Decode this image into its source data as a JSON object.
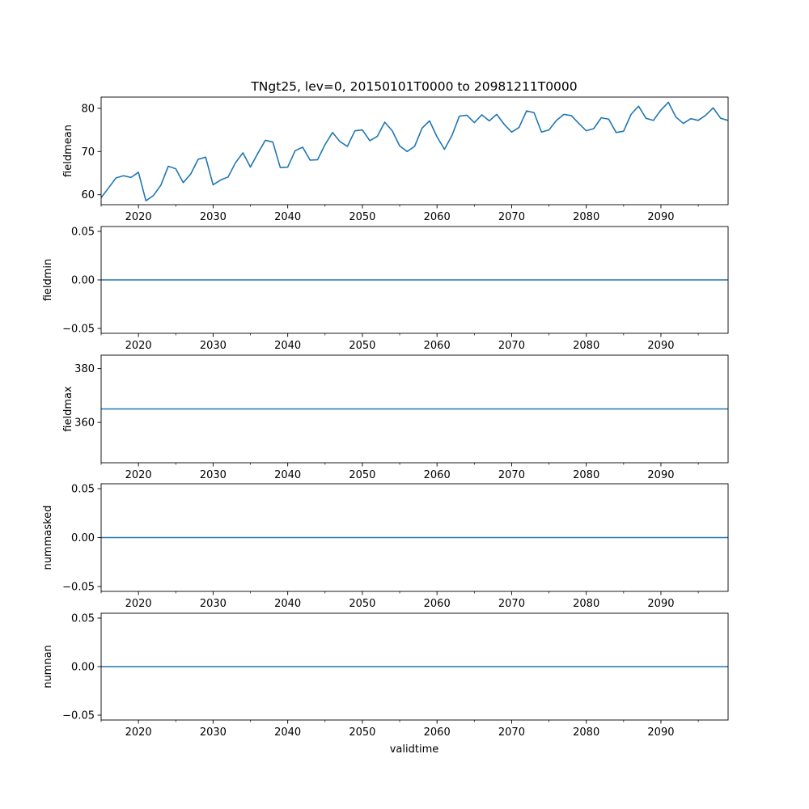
{
  "title": "TNgt25, lev=0, 20150101T0000 to 20981211T0000",
  "xlabel": "validtime",
  "chart_data": [
    {
      "type": "line",
      "ylabel": "fieldmean",
      "xlim": [
        2015,
        2099
      ],
      "ylim": [
        57.7,
        82.6
      ],
      "x_ticks": [
        2020,
        2030,
        2040,
        2050,
        2060,
        2070,
        2080,
        2090
      ],
      "x_tick_labels": [
        "2020",
        "2030",
        "2040",
        "2050",
        "2060",
        "2070",
        "2080",
        "2090"
      ],
      "y_ticks": [
        60,
        70,
        80
      ],
      "y_tick_labels": [
        "60",
        "70",
        "80"
      ],
      "line_color": "#1f77b4",
      "x": [
        2015,
        2016,
        2017,
        2018,
        2019,
        2020,
        2021,
        2022,
        2023,
        2024,
        2025,
        2026,
        2027,
        2028,
        2029,
        2030,
        2031,
        2032,
        2033,
        2034,
        2035,
        2036,
        2037,
        2038,
        2039,
        2040,
        2041,
        2042,
        2043,
        2044,
        2045,
        2046,
        2047,
        2048,
        2049,
        2050,
        2051,
        2052,
        2053,
        2054,
        2055,
        2056,
        2057,
        2058,
        2059,
        2060,
        2061,
        2062,
        2063,
        2064,
        2065,
        2066,
        2067,
        2068,
        2069,
        2070,
        2071,
        2072,
        2073,
        2074,
        2075,
        2076,
        2077,
        2078,
        2079,
        2080,
        2081,
        2082,
        2083,
        2084,
        2085,
        2086,
        2087,
        2088,
        2089,
        2090,
        2091,
        2092,
        2093,
        2094,
        2095,
        2096,
        2097,
        2098,
        2099
      ],
      "values": [
        59.3,
        61.6,
        63.9,
        64.4,
        64.0,
        65.2,
        58.6,
        59.8,
        62.2,
        66.6,
        66.0,
        62.8,
        64.8,
        68.2,
        68.7,
        62.3,
        63.4,
        64.1,
        67.4,
        69.7,
        66.4,
        69.6,
        72.6,
        72.2,
        66.3,
        66.4,
        70.2,
        71.0,
        68.0,
        68.1,
        71.6,
        74.4,
        72.3,
        71.2,
        74.8,
        75.0,
        72.5,
        73.5,
        76.8,
        74.8,
        71.3,
        70.0,
        71.2,
        75.4,
        77.1,
        73.4,
        70.5,
        73.7,
        78.2,
        78.4,
        76.7,
        78.5,
        77.1,
        78.6,
        76.3,
        74.5,
        75.6,
        79.4,
        79.0,
        74.5,
        75.0,
        77.2,
        78.6,
        78.3,
        76.5,
        74.8,
        75.3,
        77.8,
        77.5,
        74.4,
        74.7,
        78.6,
        80.5,
        77.7,
        77.2,
        79.6,
        81.4,
        78.0,
        76.5,
        77.6,
        77.2,
        78.4,
        80.1,
        77.7,
        77.2
      ]
    },
    {
      "type": "line",
      "ylabel": "fieldmin",
      "xlim": [
        2015,
        2099
      ],
      "ylim": [
        -0.055,
        0.055
      ],
      "x_ticks": [
        2020,
        2030,
        2040,
        2050,
        2060,
        2070,
        2080,
        2090
      ],
      "x_tick_labels": [
        "2020",
        "2030",
        "2040",
        "2050",
        "2060",
        "2070",
        "2080",
        "2090"
      ],
      "y_ticks": [
        -0.05,
        0.0,
        0.05
      ],
      "y_tick_labels": [
        "−0.05",
        "0.00",
        "0.05"
      ],
      "line_color": "#1f77b4",
      "x": [
        2015,
        2099
      ],
      "values": [
        0,
        0
      ]
    },
    {
      "type": "line",
      "ylabel": "fieldmax",
      "xlim": [
        2015,
        2099
      ],
      "ylim": [
        345,
        385
      ],
      "x_ticks": [
        2020,
        2030,
        2040,
        2050,
        2060,
        2070,
        2080,
        2090
      ],
      "x_tick_labels": [
        "2020",
        "2030",
        "2040",
        "2050",
        "2060",
        "2070",
        "2080",
        "2090"
      ],
      "y_ticks": [
        360,
        380
      ],
      "y_tick_labels": [
        "360",
        "380"
      ],
      "line_color": "#1f77b4",
      "x": [
        2015,
        2099
      ],
      "values": [
        365,
        365
      ]
    },
    {
      "type": "line",
      "ylabel": "nummasked",
      "xlim": [
        2015,
        2099
      ],
      "ylim": [
        -0.055,
        0.055
      ],
      "x_ticks": [
        2020,
        2030,
        2040,
        2050,
        2060,
        2070,
        2080,
        2090
      ],
      "x_tick_labels": [
        "2020",
        "2030",
        "2040",
        "2050",
        "2060",
        "2070",
        "2080",
        "2090"
      ],
      "y_ticks": [
        -0.05,
        0.0,
        0.05
      ],
      "y_tick_labels": [
        "−0.05",
        "0.00",
        "0.05"
      ],
      "line_color": "#1f77b4",
      "x": [
        2015,
        2099
      ],
      "values": [
        0,
        0
      ]
    },
    {
      "type": "line",
      "ylabel": "numnan",
      "xlim": [
        2015,
        2099
      ],
      "ylim": [
        -0.055,
        0.055
      ],
      "x_ticks": [
        2020,
        2030,
        2040,
        2050,
        2060,
        2070,
        2080,
        2090
      ],
      "x_tick_labels": [
        "2020",
        "2030",
        "2040",
        "2050",
        "2060",
        "2070",
        "2080",
        "2090"
      ],
      "y_ticks": [
        -0.05,
        0.0,
        0.05
      ],
      "y_tick_labels": [
        "−0.05",
        "0.00",
        "0.05"
      ],
      "line_color": "#1f77b4",
      "x": [
        2015,
        2099
      ],
      "values": [
        0,
        0
      ]
    }
  ]
}
